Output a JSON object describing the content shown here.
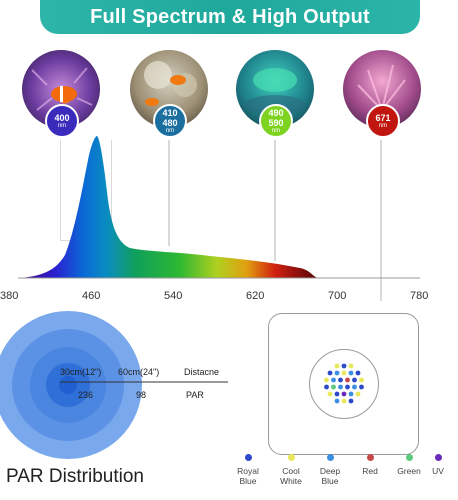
{
  "banner": {
    "title": "Full Spectrum & High Output"
  },
  "photos": [
    {
      "badge_top": "400",
      "badge_bottom": "",
      "unit": "nm",
      "badge_color": "#3a2bbd"
    },
    {
      "badge_top": "410",
      "badge_bottom": "480",
      "unit": "nm",
      "badge_color": "#1a6f9e"
    },
    {
      "badge_top": "490",
      "badge_bottom": "590",
      "unit": "nm",
      "badge_color": "#7ed321"
    },
    {
      "badge_top": "671",
      "badge_bottom": "",
      "unit": "nm",
      "badge_color": "#c0160f"
    }
  ],
  "spectrum": {
    "axis_ticks": [
      "380",
      "460",
      "540",
      "620",
      "700",
      "780"
    ]
  },
  "par": {
    "distance_1": "30cm(12\")",
    "distance_2": "60cm(24\")",
    "distance_label": "Distacne",
    "value_1": "236",
    "value_2": "98",
    "value_label": "PAR",
    "title": "PAR Distribution"
  },
  "legend": [
    {
      "label_1": "Royal",
      "label_2": "Blue",
      "color": "#2c49c9"
    },
    {
      "label_1": "Cool",
      "label_2": "White",
      "color": "#e8e85a"
    },
    {
      "label_1": "Deep",
      "label_2": "Blue",
      "color": "#3a8fe0"
    },
    {
      "label_1": "Red",
      "label_2": "",
      "color": "#c74848"
    },
    {
      "label_1": "Green",
      "label_2": "",
      "color": "#5cc87a"
    },
    {
      "label_1": "UV",
      "label_2": "",
      "color": "#6a2bb8"
    }
  ],
  "colors": {
    "accent": "#2cb5a8"
  }
}
